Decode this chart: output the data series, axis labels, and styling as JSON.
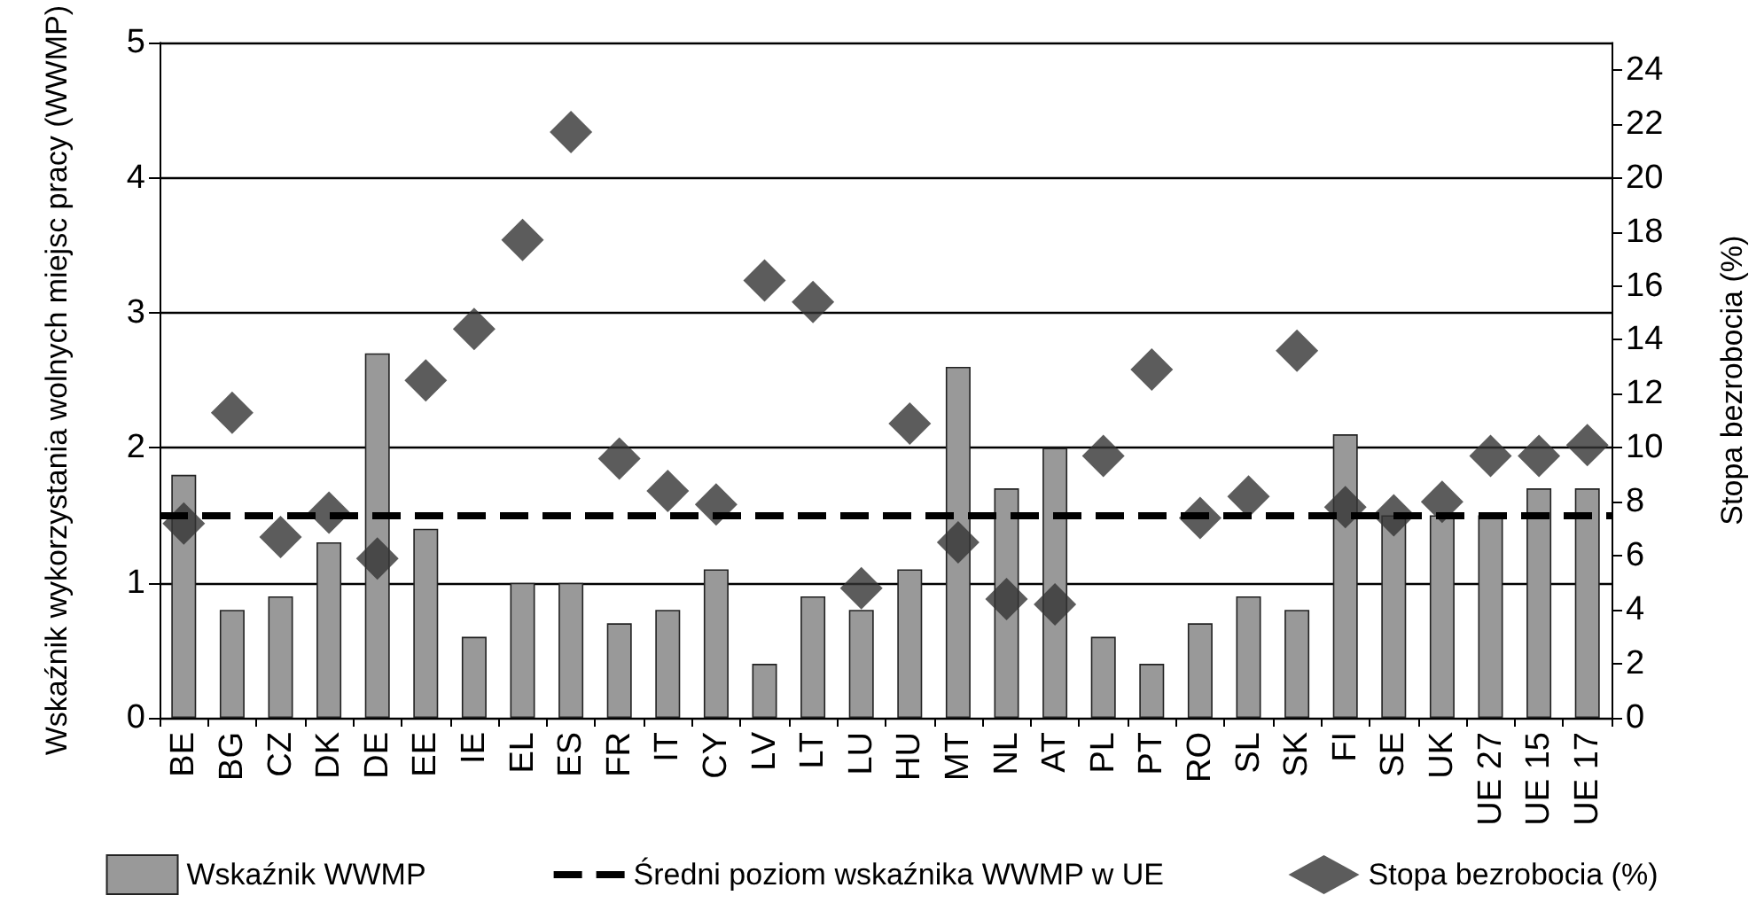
{
  "chart_data": {
    "type": "bar",
    "categories": [
      "BE",
      "BG",
      "CZ",
      "DK",
      "DE",
      "EE",
      "IE",
      "EL",
      "ES",
      "FR",
      "IT",
      "CY",
      "LV",
      "LT",
      "LU",
      "HU",
      "MT",
      "NL",
      "AT",
      "PL",
      "PT",
      "RO",
      "SL",
      "SK",
      "FI",
      "SE",
      "UK",
      "UE 27",
      "UE 15",
      "UE 17"
    ],
    "ylabel": "Wskaźnik wykorzystania wolnych miejsc pracy (WWMP)",
    "y2label": "Stopa bezrobocia (%)",
    "ylim": [
      0,
      5
    ],
    "yticks": [
      0,
      1,
      2,
      3,
      4,
      5
    ],
    "y2lim": [
      0,
      25
    ],
    "y2ticks": [
      0,
      2,
      4,
      6,
      8,
      10,
      12,
      14,
      16,
      18,
      20,
      22,
      24
    ],
    "grid": "y",
    "legend": "bottom",
    "series": [
      {
        "name": "Wskaźnik WWMP",
        "color": "#999999",
        "values": [
          1.8,
          0.8,
          0.9,
          1.3,
          2.7,
          1.4,
          0.6,
          1.0,
          1.0,
          0.7,
          0.8,
          1.1,
          0.4,
          0.9,
          0.8,
          1.1,
          2.6,
          1.7,
          2.0,
          0.6,
          0.4,
          0.7,
          0.9,
          0.8,
          2.1,
          1.5,
          1.5,
          1.5,
          1.7,
          1.7
        ]
      },
      {
        "name": "Stopa bezrobocia (%)",
        "type": "scatter",
        "axis": "y2",
        "marker": "diamond",
        "color": "#333333",
        "values": [
          7.2,
          11.3,
          6.7,
          7.6,
          5.9,
          12.5,
          14.4,
          17.7,
          21.7,
          9.6,
          8.4,
          7.9,
          16.2,
          15.4,
          4.8,
          10.9,
          6.5,
          4.4,
          4.2,
          9.7,
          12.9,
          7.4,
          8.2,
          13.6,
          7.8,
          7.5,
          8.0,
          9.7,
          9.7,
          10.1
        ]
      }
    ],
    "ref_lines": [
      {
        "axis": "y",
        "value": 1.5,
        "label": "Średni poziom wskaźnika WWMP w UE",
        "color": "#000000",
        "line_style": "dashed"
      }
    ]
  }
}
